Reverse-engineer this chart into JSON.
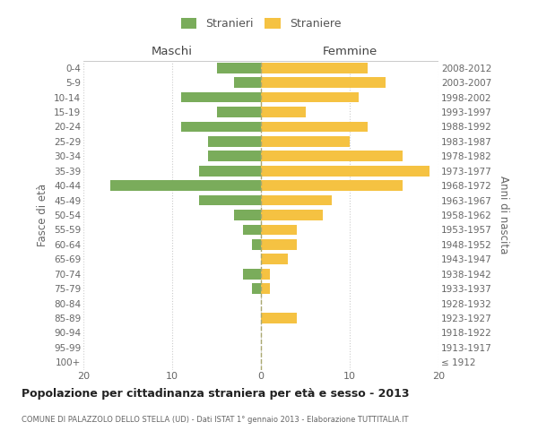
{
  "age_groups": [
    "100+",
    "95-99",
    "90-94",
    "85-89",
    "80-84",
    "75-79",
    "70-74",
    "65-69",
    "60-64",
    "55-59",
    "50-54",
    "45-49",
    "40-44",
    "35-39",
    "30-34",
    "25-29",
    "20-24",
    "15-19",
    "10-14",
    "5-9",
    "0-4"
  ],
  "birth_years": [
    "≤ 1912",
    "1913-1917",
    "1918-1922",
    "1923-1927",
    "1928-1932",
    "1933-1937",
    "1938-1942",
    "1943-1947",
    "1948-1952",
    "1953-1957",
    "1958-1962",
    "1963-1967",
    "1968-1972",
    "1973-1977",
    "1978-1982",
    "1983-1987",
    "1988-1992",
    "1993-1997",
    "1998-2002",
    "2003-2007",
    "2008-2012"
  ],
  "males": [
    0,
    0,
    0,
    0,
    0,
    1,
    2,
    0,
    1,
    2,
    3,
    7,
    17,
    7,
    6,
    6,
    9,
    5,
    9,
    3,
    5
  ],
  "females": [
    0,
    0,
    0,
    4,
    0,
    1,
    1,
    3,
    4,
    4,
    7,
    8,
    16,
    19,
    16,
    10,
    12,
    5,
    11,
    14,
    12
  ],
  "male_color": "#7aac5b",
  "female_color": "#f5c242",
  "title": "Popolazione per cittadinanza straniera per età e sesso - 2013",
  "subtitle": "COMUNE DI PALAZZOLO DELLO STELLA (UD) - Dati ISTAT 1° gennaio 2013 - Elaborazione TUTTITALIA.IT",
  "ylabel_left": "Fasce di età",
  "ylabel_right": "Anni di nascita",
  "label_maschi": "Maschi",
  "label_femmine": "Femmine",
  "legend_stranieri": "Stranieri",
  "legend_straniere": "Straniere",
  "xlim": 20
}
